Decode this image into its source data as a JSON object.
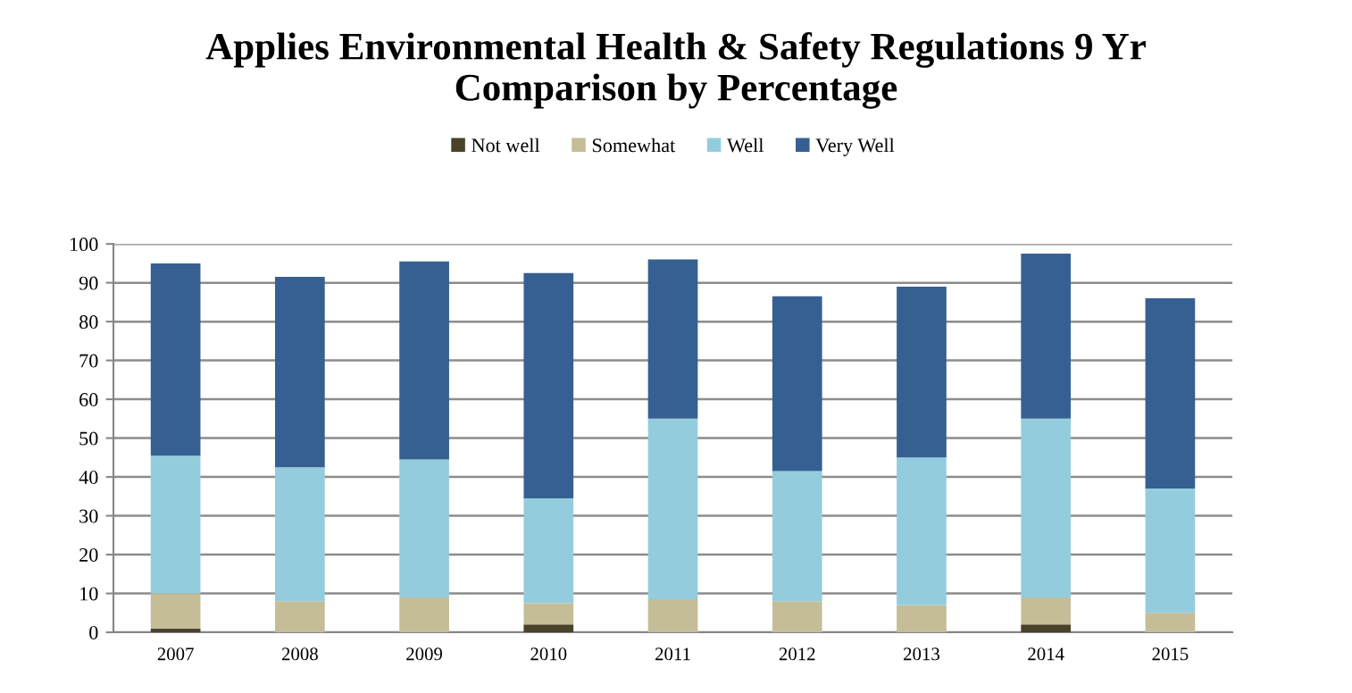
{
  "chart_data": {
    "type": "bar",
    "title": "Applies Environmental Health & Safety Regulations 9 Yr\nComparison by Percentage",
    "categories": [
      "2007",
      "2008",
      "2009",
      "2010",
      "2011",
      "2012",
      "2013",
      "2014",
      "2015"
    ],
    "stacked": true,
    "series": [
      {
        "name": "Not well",
        "color": "#4a4329",
        "values": [
          1,
          null,
          null,
          2,
          null,
          null,
          null,
          2,
          null
        ]
      },
      {
        "name": "Somewhat",
        "color": "#c4bd97",
        "values": [
          9,
          8,
          9,
          5.5,
          8.5,
          8,
          7,
          7,
          5
        ]
      },
      {
        "name": "Well",
        "color": "#93cddd",
        "values": [
          35.5,
          34.5,
          35.5,
          27,
          46.5,
          33.5,
          38,
          46,
          32
        ]
      },
      {
        "name": "Very Well",
        "color": "#366092",
        "values": [
          49.5,
          49,
          51,
          58,
          41,
          45,
          44,
          42.5,
          49
        ]
      }
    ],
    "ylim": [
      0,
      100
    ],
    "yticks": [
      0,
      10,
      20,
      30,
      40,
      50,
      60,
      70,
      80,
      90,
      100
    ],
    "grid": "y",
    "legend": "top"
  }
}
